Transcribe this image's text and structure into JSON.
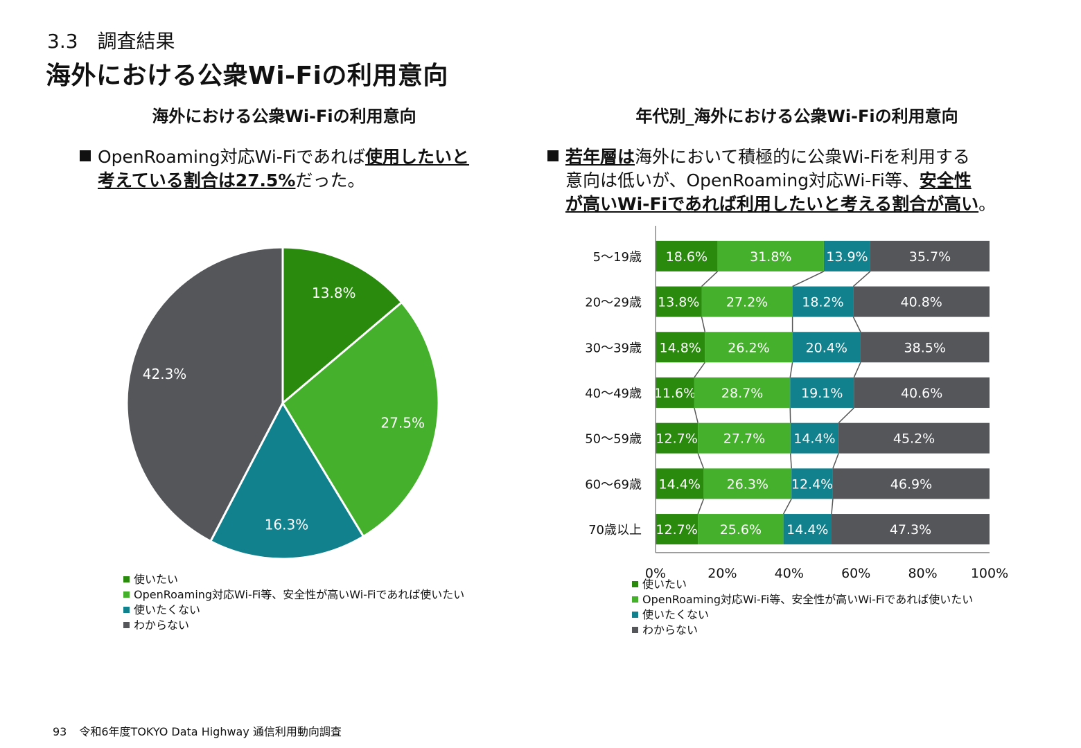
{
  "header": {
    "section": "3.3　調査結果",
    "title": "海外における公衆Wi-Fiの利用意向"
  },
  "colors": {
    "use": "#2a8a0e",
    "use_if_safe": "#45b02c",
    "not_use": "#12818e",
    "unknown": "#54565a"
  },
  "legend": [
    {
      "label": "使いたい",
      "color": "#2a8a0e"
    },
    {
      "label": "OpenRoaming対応Wi-Fi等、安全性が高いWi-Fiであれば使いたい",
      "color": "#45b02c"
    },
    {
      "label": "使いたくない",
      "color": "#12818e"
    },
    {
      "label": "わからない",
      "color": "#54565a"
    }
  ],
  "left": {
    "title": "海外における公衆Wi-Fiの利用意向",
    "bullet": {
      "plain1": "OpenRoaming対応Wi-Fiであれば",
      "under1": "使用したいと",
      "under2": "考えている割合は27.5%",
      "plain2": "だった。"
    }
  },
  "right": {
    "title": "年代別_海外における公衆Wi-Fiの利用意向",
    "bullet": {
      "under1": "若年層は",
      "plain1": "海外において積極的に公衆Wi-Fiを利用する",
      "plain2": "意向は低いが、OpenRoaming対応Wi-Fi等、",
      "under2": "安全性",
      "under3": "が高いWi-Fiであれば利用したいと考える割合が高い",
      "plain3": "。"
    }
  },
  "chart_data": [
    {
      "type": "pie",
      "title": "海外における公衆Wi-Fiの利用意向",
      "categories": [
        "使いたい",
        "OpenRoaming対応Wi-Fi等、安全性が高いWi-Fiであれば使いたい",
        "使いたくない",
        "わからない"
      ],
      "values": [
        13.8,
        27.5,
        16.3,
        42.3
      ],
      "labels": [
        "13.8%",
        "27.5%",
        "16.3%",
        "42.3%"
      ]
    },
    {
      "type": "bar",
      "orientation": "horizontal",
      "stacked": "100%",
      "title": "年代別_海外における公衆Wi-Fiの利用意向",
      "categories": [
        "5～19歳",
        "20～29歳",
        "30～39歳",
        "40～49歳",
        "50～59歳",
        "60～69歳",
        "70歳以上"
      ],
      "series": [
        {
          "name": "使いたい",
          "values": [
            18.6,
            13.8,
            14.8,
            11.6,
            12.7,
            14.4,
            12.7
          ]
        },
        {
          "name": "OpenRoaming対応Wi-Fi等、安全性が高いWi-Fiであれば使いたい",
          "values": [
            31.8,
            27.2,
            26.2,
            28.7,
            27.7,
            26.3,
            25.6
          ]
        },
        {
          "name": "使いたくない",
          "values": [
            13.9,
            18.2,
            20.4,
            19.1,
            14.4,
            12.4,
            14.4
          ]
        },
        {
          "name": "わからない",
          "values": [
            35.7,
            40.8,
            38.5,
            40.6,
            45.2,
            46.9,
            47.3
          ]
        }
      ],
      "xticks": [
        "0%",
        "20%",
        "40%",
        "60%",
        "80%",
        "100%"
      ],
      "xlim": [
        0,
        100
      ],
      "series_lines": true,
      "legend_position": "bottom-left"
    }
  ],
  "footer": {
    "page": "93",
    "text": "令和6年度TOKYO Data Highway 通信利用動向調査"
  }
}
